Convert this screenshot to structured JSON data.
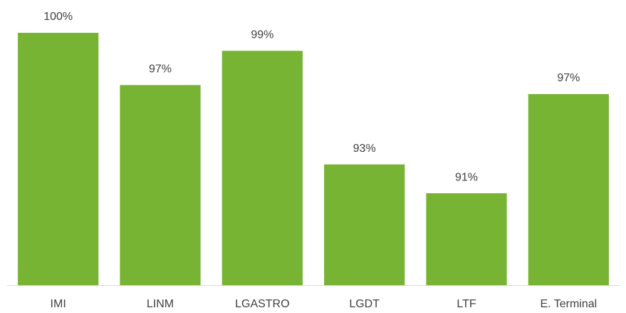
{
  "chart_data": {
    "type": "bar",
    "categories": [
      "IMI",
      "LINM",
      "LGASTRO",
      "LGDT",
      "LTF",
      "E. Terminal"
    ],
    "values": [
      100,
      97.1,
      99.0,
      92.7,
      91.1,
      96.6
    ],
    "value_labels": [
      "100%",
      "97%",
      "99%",
      "93%",
      "91%",
      "97%"
    ],
    "color": "#77b433",
    "ylim": [
      86,
      100
    ]
  }
}
